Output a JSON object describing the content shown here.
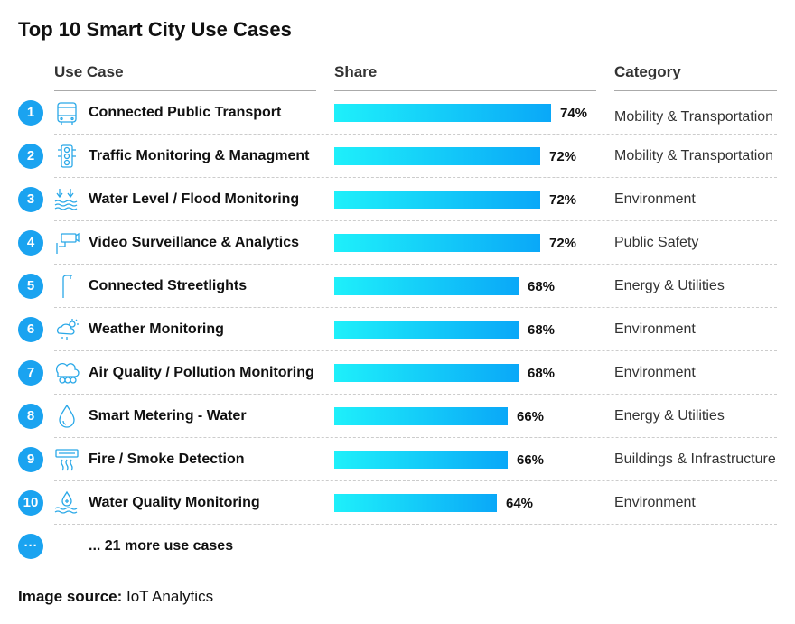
{
  "title": "Top 10 Smart City Use Cases",
  "headers": {
    "use_case": "Use Case",
    "share": "Share",
    "category": "Category"
  },
  "chart_data": {
    "type": "bar",
    "orientation": "horizontal",
    "value_format": "percent",
    "categories": [
      "Connected Public Transport",
      "Traffic Monitoring & Managment",
      "Water Level / Flood Monitoring",
      "Video Surveillance & Analytics",
      "Connected Streetlights",
      "Weather Monitoring",
      "Air Quality / Pollution Monitoring",
      "Smart Metering - Water",
      "Fire / Smoke Detection",
      "Water Quality Monitoring"
    ],
    "values": [
      74,
      72,
      72,
      72,
      68,
      68,
      68,
      66,
      66,
      64
    ],
    "data_labels": [
      "74%",
      "72%",
      "72%",
      "72%",
      "68%",
      "68%",
      "68%",
      "66%",
      "66%",
      "64%"
    ],
    "bar_gradient": [
      "#1ef0fa",
      "#0aa8f8"
    ]
  },
  "rows": [
    {
      "rank": "1",
      "icon": "bus-icon",
      "label": "Connected Public Transport",
      "category": "Mobility & Transportation"
    },
    {
      "rank": "2",
      "icon": "traffic-light-icon",
      "label": "Traffic Monitoring & Managment",
      "category": "Mobility & Transportation"
    },
    {
      "rank": "3",
      "icon": "flood-icon",
      "label": "Water Level / Flood Monitoring",
      "category": "Environment"
    },
    {
      "rank": "4",
      "icon": "cctv-camera-icon",
      "label": "Video Surveillance & Analytics",
      "category": "Public Safety"
    },
    {
      "rank": "5",
      "icon": "streetlight-icon",
      "label": "Connected Streetlights",
      "category": "Energy & Utilities"
    },
    {
      "rank": "6",
      "icon": "weather-icon",
      "label": "Weather Monitoring",
      "category": "Environment"
    },
    {
      "rank": "7",
      "icon": "air-pollution-icon",
      "label": "Air Quality / Pollution Monitoring",
      "category": "Environment"
    },
    {
      "rank": "8",
      "icon": "water-drop-icon",
      "label": "Smart Metering - Water",
      "category": "Energy & Utilities"
    },
    {
      "rank": "9",
      "icon": "smoke-detector-icon",
      "label": "Fire / Smoke Detection",
      "category": "Buildings & Infrastructure"
    },
    {
      "rank": "10",
      "icon": "water-quality-icon",
      "label": "Water Quality Monitoring",
      "category": "Environment"
    }
  ],
  "more": {
    "rank": "···",
    "label": "... 21 more use cases"
  },
  "source": {
    "label": "Image source:",
    "value": "IoT Analytics"
  },
  "colors": {
    "accent": "#1aa3f0",
    "icon": "#29a8e8"
  }
}
